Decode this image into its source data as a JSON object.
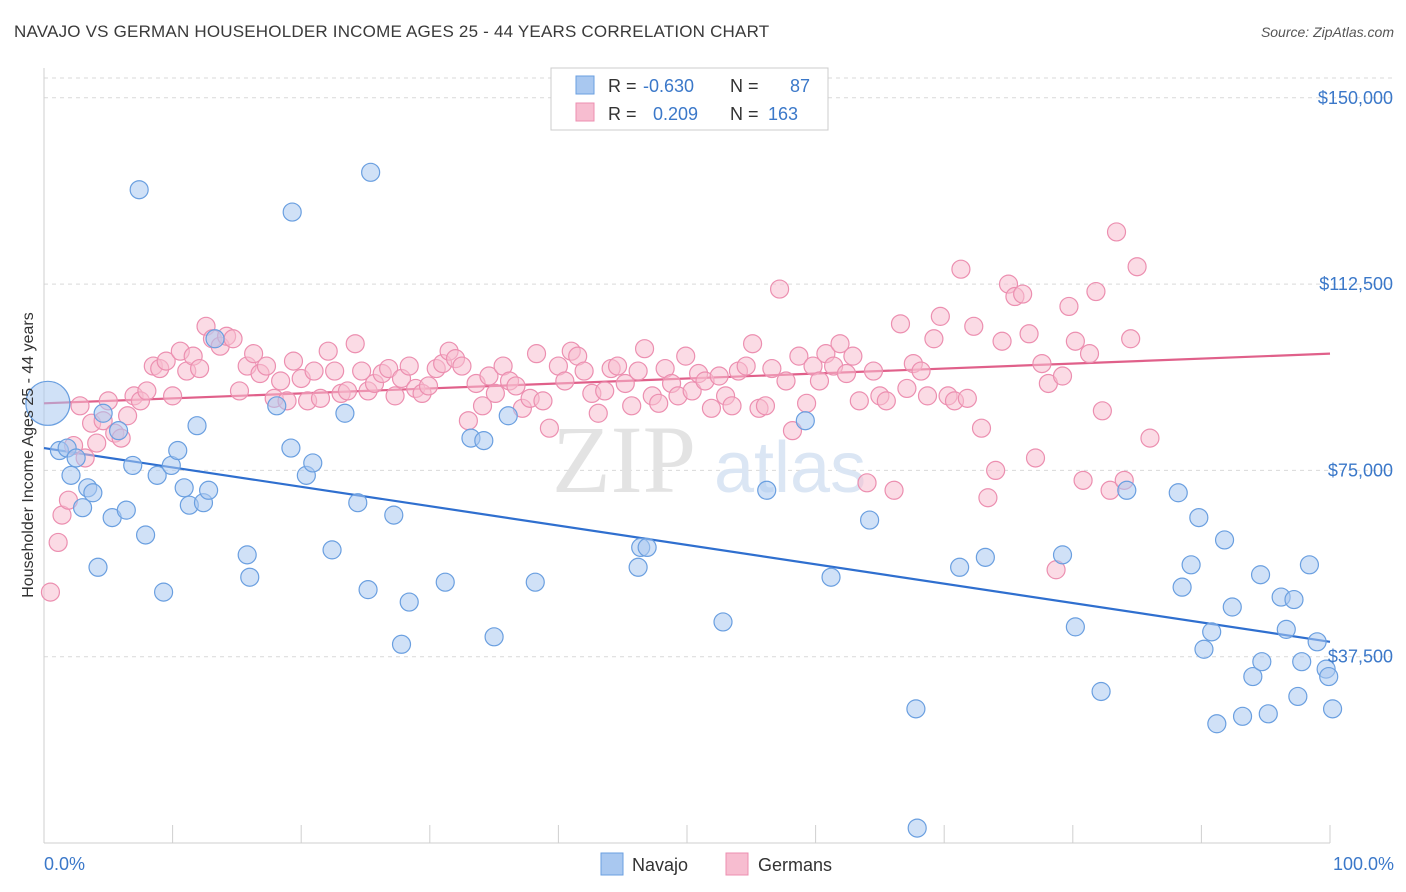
{
  "title": "NAVAJO VS GERMAN HOUSEHOLDER INCOME AGES 25 - 44 YEARS CORRELATION CHART",
  "source": "Source: ZipAtlas.com",
  "watermark": {
    "zip": "ZIP",
    "atlas": "atlas"
  },
  "colors": {
    "navajo_fill": "#a9c8f0",
    "navajo_stroke": "#6a9fe0",
    "navajo_line": "#2f6fcf",
    "german_fill": "#f7bdd0",
    "german_stroke": "#ec8fb0",
    "german_line": "#e0608a",
    "tick_text": "#3b78c9",
    "grid": "#d9d9d9"
  },
  "legend_top": {
    "rows": [
      {
        "r_label": "R =",
        "r_value": "-0.630",
        "n_label": "N =",
        "n_value": "87"
      },
      {
        "r_label": "R =",
        "r_value": "0.209",
        "n_label": "N =",
        "n_value": "163"
      }
    ]
  },
  "legend_bottom": {
    "navajo": "Navajo",
    "germans": "Germans"
  },
  "chart_data": {
    "type": "scatter",
    "title": "NAVAJO VS GERMAN HOUSEHOLDER INCOME AGES 25 - 44 YEARS CORRELATION CHART",
    "xlabel": "",
    "ylabel": "Householder Income Ages 25 - 44 years",
    "xlim": [
      0,
      100
    ],
    "ylim": [
      0,
      156000
    ],
    "x_tick_labels": [
      "0.0%",
      "100.0%"
    ],
    "y_ticks": [
      37500,
      75000,
      112500,
      150000
    ],
    "y_tick_labels": [
      "$37,500",
      "$75,000",
      "$112,500",
      "$150,000"
    ],
    "grid": true,
    "legend_position": "top-center",
    "series": [
      {
        "name": "Navajo",
        "r": -0.63,
        "n": 87,
        "trend": {
          "x": [
            0,
            100
          ],
          "y": [
            79500,
            40500
          ]
        },
        "points": [
          [
            0.3,
            88500
          ],
          [
            1.2,
            79000
          ],
          [
            1.8,
            79500
          ],
          [
            2.1,
            74000
          ],
          [
            2.5,
            77500
          ],
          [
            3.0,
            67500
          ],
          [
            3.4,
            71500
          ],
          [
            3.8,
            70500
          ],
          [
            4.2,
            55500
          ],
          [
            4.6,
            86500
          ],
          [
            5.3,
            65500
          ],
          [
            5.8,
            83000
          ],
          [
            6.4,
            67000
          ],
          [
            6.9,
            76000
          ],
          [
            7.4,
            131500
          ],
          [
            7.9,
            62000
          ],
          [
            8.8,
            74000
          ],
          [
            9.3,
            50500
          ],
          [
            9.9,
            76000
          ],
          [
            10.4,
            79000
          ],
          [
            10.9,
            71500
          ],
          [
            11.3,
            68000
          ],
          [
            11.9,
            84000
          ],
          [
            12.4,
            68500
          ],
          [
            12.8,
            71000
          ],
          [
            13.3,
            101500
          ],
          [
            15.8,
            58000
          ],
          [
            16.0,
            53500
          ],
          [
            18.1,
            88000
          ],
          [
            19.2,
            79500
          ],
          [
            19.3,
            127000
          ],
          [
            20.4,
            74000
          ],
          [
            20.9,
            76500
          ],
          [
            22.4,
            59000
          ],
          [
            23.4,
            86500
          ],
          [
            24.4,
            68500
          ],
          [
            25.2,
            51000
          ],
          [
            25.4,
            135000
          ],
          [
            27.2,
            66000
          ],
          [
            27.8,
            40000
          ],
          [
            28.4,
            48500
          ],
          [
            31.2,
            52500
          ],
          [
            33.2,
            81500
          ],
          [
            34.2,
            81000
          ],
          [
            35.0,
            41500
          ],
          [
            36.1,
            86000
          ],
          [
            38.2,
            52500
          ],
          [
            46.2,
            55500
          ],
          [
            46.4,
            59500
          ],
          [
            46.9,
            59500
          ],
          [
            52.8,
            44500
          ],
          [
            56.2,
            71000
          ],
          [
            59.2,
            85000
          ],
          [
            61.2,
            53500
          ],
          [
            64.2,
            65000
          ],
          [
            67.8,
            27000
          ],
          [
            67.9,
            3000
          ],
          [
            71.2,
            55500
          ],
          [
            73.2,
            57500
          ],
          [
            79.2,
            58000
          ],
          [
            80.2,
            43500
          ],
          [
            82.2,
            30500
          ],
          [
            84.2,
            71000
          ],
          [
            88.2,
            70500
          ],
          [
            88.5,
            51500
          ],
          [
            89.2,
            56000
          ],
          [
            89.8,
            65500
          ],
          [
            90.2,
            39000
          ],
          [
            90.8,
            42500
          ],
          [
            91.2,
            24000
          ],
          [
            91.8,
            61000
          ],
          [
            92.4,
            47500
          ],
          [
            93.2,
            25500
          ],
          [
            94.0,
            33500
          ],
          [
            94.6,
            54000
          ],
          [
            94.7,
            36500
          ],
          [
            95.2,
            26000
          ],
          [
            96.2,
            49500
          ],
          [
            96.6,
            43000
          ],
          [
            97.2,
            49000
          ],
          [
            97.5,
            29500
          ],
          [
            97.8,
            36500
          ],
          [
            98.4,
            56000
          ],
          [
            99.0,
            40500
          ],
          [
            99.7,
            35000
          ],
          [
            99.9,
            33500
          ],
          [
            100.2,
            27000
          ]
        ]
      },
      {
        "name": "Germans",
        "r": 0.209,
        "n": 163,
        "trend": {
          "x": [
            0,
            100
          ],
          "y": [
            88500,
            98500
          ]
        },
        "points": [
          [
            0.5,
            50500
          ],
          [
            1.1,
            60500
          ],
          [
            1.4,
            66000
          ],
          [
            1.9,
            69000
          ],
          [
            2.3,
            80000
          ],
          [
            2.8,
            88000
          ],
          [
            3.2,
            77500
          ],
          [
            3.7,
            84500
          ],
          [
            4.1,
            80500
          ],
          [
            4.6,
            85000
          ],
          [
            5.0,
            89000
          ],
          [
            5.5,
            82500
          ],
          [
            6.0,
            81500
          ],
          [
            6.5,
            86000
          ],
          [
            7.0,
            90000
          ],
          [
            7.5,
            89000
          ],
          [
            8.0,
            91000
          ],
          [
            8.5,
            96000
          ],
          [
            9.0,
            95500
          ],
          [
            9.5,
            97000
          ],
          [
            10.0,
            90000
          ],
          [
            10.6,
            99000
          ],
          [
            11.1,
            95000
          ],
          [
            11.6,
            98000
          ],
          [
            12.1,
            95500
          ],
          [
            12.6,
            104000
          ],
          [
            13.1,
            101500
          ],
          [
            13.7,
            100000
          ],
          [
            14.2,
            102000
          ],
          [
            14.7,
            101500
          ],
          [
            15.2,
            91000
          ],
          [
            15.8,
            96000
          ],
          [
            16.3,
            98500
          ],
          [
            16.8,
            94500
          ],
          [
            17.3,
            96000
          ],
          [
            17.9,
            89500
          ],
          [
            18.4,
            93000
          ],
          [
            18.9,
            89000
          ],
          [
            19.4,
            97000
          ],
          [
            20.0,
            93500
          ],
          [
            20.5,
            89000
          ],
          [
            21.0,
            95000
          ],
          [
            21.5,
            89500
          ],
          [
            22.1,
            99000
          ],
          [
            22.6,
            95000
          ],
          [
            23.1,
            90500
          ],
          [
            23.6,
            91000
          ],
          [
            24.2,
            100500
          ],
          [
            24.7,
            95000
          ],
          [
            25.2,
            91000
          ],
          [
            25.7,
            92500
          ],
          [
            26.3,
            94500
          ],
          [
            26.8,
            95500
          ],
          [
            27.3,
            90000
          ],
          [
            27.8,
            93500
          ],
          [
            28.4,
            96000
          ],
          [
            28.9,
            91500
          ],
          [
            29.4,
            90500
          ],
          [
            29.9,
            92000
          ],
          [
            30.5,
            95500
          ],
          [
            31.0,
            96500
          ],
          [
            31.5,
            99000
          ],
          [
            32.0,
            97500
          ],
          [
            32.5,
            96000
          ],
          [
            33.0,
            85000
          ],
          [
            33.6,
            92500
          ],
          [
            34.1,
            88000
          ],
          [
            34.6,
            94000
          ],
          [
            35.1,
            90500
          ],
          [
            35.7,
            96000
          ],
          [
            36.2,
            93000
          ],
          [
            36.7,
            92000
          ],
          [
            37.2,
            87500
          ],
          [
            37.8,
            89500
          ],
          [
            38.3,
            98500
          ],
          [
            38.8,
            89000
          ],
          [
            39.3,
            83500
          ],
          [
            40.0,
            96000
          ],
          [
            40.5,
            93000
          ],
          [
            41.0,
            99000
          ],
          [
            41.5,
            98000
          ],
          [
            42.0,
            95000
          ],
          [
            42.6,
            90500
          ],
          [
            43.1,
            86500
          ],
          [
            43.6,
            91000
          ],
          [
            44.1,
            95500
          ],
          [
            44.6,
            96000
          ],
          [
            45.2,
            92500
          ],
          [
            45.7,
            88000
          ],
          [
            46.2,
            95000
          ],
          [
            46.7,
            99500
          ],
          [
            47.3,
            90000
          ],
          [
            47.8,
            88500
          ],
          [
            48.3,
            95500
          ],
          [
            48.8,
            92500
          ],
          [
            49.3,
            90000
          ],
          [
            49.9,
            98000
          ],
          [
            50.4,
            91000
          ],
          [
            50.9,
            94500
          ],
          [
            51.4,
            93000
          ],
          [
            51.9,
            87500
          ],
          [
            52.5,
            94000
          ],
          [
            53.0,
            90000
          ],
          [
            53.5,
            88000
          ],
          [
            54.0,
            95000
          ],
          [
            54.6,
            96000
          ],
          [
            55.1,
            100500
          ],
          [
            55.6,
            87500
          ],
          [
            56.1,
            88000
          ],
          [
            56.6,
            95500
          ],
          [
            57.2,
            111500
          ],
          [
            57.7,
            93000
          ],
          [
            58.2,
            83000
          ],
          [
            58.7,
            98000
          ],
          [
            59.3,
            88500
          ],
          [
            59.8,
            96000
          ],
          [
            60.3,
            93000
          ],
          [
            60.8,
            98500
          ],
          [
            61.4,
            96000
          ],
          [
            61.9,
            100500
          ],
          [
            62.4,
            94500
          ],
          [
            62.9,
            98000
          ],
          [
            63.4,
            89000
          ],
          [
            64.0,
            72500
          ],
          [
            64.5,
            95000
          ],
          [
            65.0,
            90000
          ],
          [
            65.5,
            89000
          ],
          [
            66.1,
            71000
          ],
          [
            66.6,
            104500
          ],
          [
            67.1,
            91500
          ],
          [
            67.6,
            96500
          ],
          [
            68.2,
            95000
          ],
          [
            68.7,
            90000
          ],
          [
            69.2,
            101500
          ],
          [
            69.7,
            106000
          ],
          [
            70.3,
            90000
          ],
          [
            70.8,
            89000
          ],
          [
            71.3,
            115500
          ],
          [
            71.8,
            89500
          ],
          [
            72.3,
            104000
          ],
          [
            72.9,
            83500
          ],
          [
            73.4,
            69500
          ],
          [
            74.0,
            75000
          ],
          [
            74.5,
            101000
          ],
          [
            75.0,
            112500
          ],
          [
            75.5,
            110000
          ],
          [
            76.1,
            110500
          ],
          [
            76.6,
            102500
          ],
          [
            77.1,
            77500
          ],
          [
            77.6,
            96500
          ],
          [
            78.1,
            92500
          ],
          [
            78.7,
            55000
          ],
          [
            79.2,
            94000
          ],
          [
            79.7,
            108000
          ],
          [
            80.2,
            101000
          ],
          [
            80.8,
            73000
          ],
          [
            81.3,
            98500
          ],
          [
            81.8,
            111000
          ],
          [
            82.3,
            87000
          ],
          [
            82.9,
            71000
          ],
          [
            83.4,
            123000
          ],
          [
            84.0,
            73000
          ],
          [
            84.5,
            101500
          ],
          [
            85.0,
            116000
          ],
          [
            86.0,
            81500
          ]
        ]
      }
    ]
  }
}
